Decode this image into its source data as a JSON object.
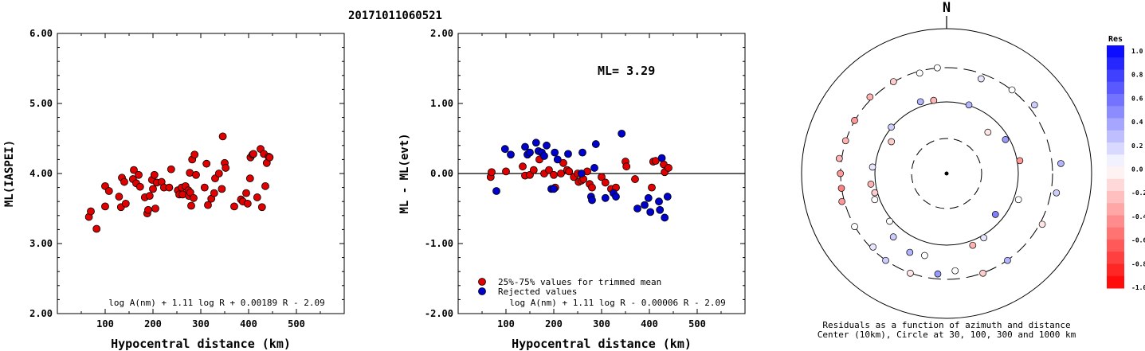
{
  "title": "20171011060521",
  "chart_data": [
    {
      "type": "scatter",
      "xlabel": "Hypocentral distance (km)",
      "ylabel": "ML(IASPEI)",
      "xlim": [
        0,
        600
      ],
      "ylim": [
        2.0,
        6.0
      ],
      "x_ticks": [
        "100",
        "200",
        "300",
        "400",
        "500"
      ],
      "y_ticks": [
        "2.00",
        "3.00",
        "4.00",
        "5.00",
        "6.00"
      ],
      "formula": "log A(nm) + 1.11 log R + 0.00189 R - 2.09",
      "marker_color": "#e00000",
      "points": [
        [
          66,
          3.38
        ],
        [
          70,
          3.46
        ],
        [
          82,
          3.21
        ],
        [
          100,
          3.82
        ],
        [
          100,
          3.53
        ],
        [
          108,
          3.75
        ],
        [
          129,
          3.67
        ],
        [
          133,
          3.52
        ],
        [
          135,
          3.94
        ],
        [
          140,
          3.88
        ],
        [
          143,
          3.57
        ],
        [
          158,
          3.92
        ],
        [
          160,
          4.05
        ],
        [
          165,
          3.86
        ],
        [
          170,
          3.98
        ],
        [
          173,
          3.81
        ],
        [
          183,
          3.66
        ],
        [
          188,
          3.43
        ],
        [
          190,
          3.48
        ],
        [
          193,
          3.68
        ],
        [
          198,
          3.91
        ],
        [
          200,
          3.78
        ],
        [
          203,
          3.98
        ],
        [
          205,
          3.5
        ],
        [
          208,
          3.87
        ],
        [
          218,
          3.88
        ],
        [
          223,
          3.8
        ],
        [
          234,
          3.8
        ],
        [
          238,
          4.06
        ],
        [
          252,
          3.76
        ],
        [
          255,
          3.7
        ],
        [
          260,
          3.8
        ],
        [
          262,
          3.7
        ],
        [
          268,
          3.82
        ],
        [
          274,
          3.76
        ],
        [
          275,
          3.68
        ],
        [
          277,
          4.01
        ],
        [
          278,
          3.73
        ],
        [
          280,
          3.54
        ],
        [
          282,
          4.2
        ],
        [
          285,
          3.65
        ],
        [
          287,
          4.27
        ],
        [
          290,
          3.98
        ],
        [
          308,
          3.8
        ],
        [
          312,
          4.14
        ],
        [
          315,
          3.55
        ],
        [
          322,
          3.64
        ],
        [
          328,
          3.72
        ],
        [
          330,
          3.93
        ],
        [
          338,
          4.0
        ],
        [
          344,
          3.78
        ],
        [
          346,
          4.53
        ],
        [
          350,
          4.15
        ],
        [
          352,
          4.08
        ],
        [
          370,
          3.53
        ],
        [
          384,
          3.63
        ],
        [
          388,
          3.6
        ],
        [
          395,
          3.72
        ],
        [
          398,
          3.57
        ],
        [
          403,
          3.93
        ],
        [
          404,
          4.23
        ],
        [
          408,
          4.27
        ],
        [
          410,
          4.28
        ],
        [
          418,
          3.66
        ],
        [
          425,
          4.35
        ],
        [
          428,
          3.52
        ],
        [
          432,
          4.28
        ],
        [
          435,
          3.82
        ],
        [
          438,
          4.15
        ],
        [
          442,
          4.24
        ],
        [
          444,
          4.23
        ]
      ]
    },
    {
      "type": "scatter",
      "xlabel": "Hypocentral distance (km)",
      "ylabel": "ML - ML(evt)",
      "xlim": [
        0,
        600
      ],
      "ylim": [
        -2.0,
        2.0
      ],
      "x_ticks": [
        "100",
        "200",
        "300",
        "400",
        "500"
      ],
      "y_ticks": [
        "-2.00",
        "-1.00",
        "0.00",
        "1.00",
        "2.00"
      ],
      "annotation": "ML= 3.29",
      "formula": "log A(nm) + 1.11 log R - 0.00006 R - 2.09",
      "reference_line": 0.0,
      "series": [
        {
          "name": "25%-75% values for trimmed mean",
          "color": "#e00000",
          "points": [
            [
              68,
              -0.05
            ],
            [
              70,
              0.02
            ],
            [
              100,
              0.03
            ],
            [
              135,
              0.1
            ],
            [
              140,
              -0.03
            ],
            [
              150,
              -0.02
            ],
            [
              158,
              0.05
            ],
            [
              170,
              0.2
            ],
            [
              180,
              0.0
            ],
            [
              190,
              0.05
            ],
            [
              200,
              -0.02
            ],
            [
              203,
              -0.2
            ],
            [
              215,
              0.0
            ],
            [
              220,
              0.15
            ],
            [
              228,
              0.05
            ],
            [
              232,
              0.03
            ],
            [
              242,
              -0.05
            ],
            [
              250,
              0.0
            ],
            [
              252,
              -0.12
            ],
            [
              258,
              -0.1
            ],
            [
              262,
              -0.08
            ],
            [
              270,
              0.03
            ],
            [
              275,
              -0.15
            ],
            [
              280,
              -0.2
            ],
            [
              300,
              -0.05
            ],
            [
              308,
              -0.13
            ],
            [
              320,
              -0.22
            ],
            [
              330,
              -0.2
            ],
            [
              350,
              0.17
            ],
            [
              352,
              0.1
            ],
            [
              370,
              -0.08
            ],
            [
              405,
              -0.2
            ],
            [
              408,
              0.17
            ],
            [
              413,
              0.18
            ],
            [
              430,
              0.13
            ],
            [
              432,
              0.02
            ],
            [
              440,
              0.08
            ]
          ]
        },
        {
          "name": "Rejected values",
          "color": "#0000cc",
          "points": [
            [
              80,
              -0.25
            ],
            [
              98,
              0.35
            ],
            [
              110,
              0.27
            ],
            [
              140,
              0.38
            ],
            [
              145,
              0.27
            ],
            [
              150,
              0.3
            ],
            [
              163,
              0.44
            ],
            [
              168,
              0.32
            ],
            [
              175,
              0.3
            ],
            [
              180,
              0.25
            ],
            [
              185,
              0.4
            ],
            [
              195,
              -0.22
            ],
            [
              200,
              -0.22
            ],
            [
              202,
              0.3
            ],
            [
              208,
              0.2
            ],
            [
              230,
              0.28
            ],
            [
              258,
              0.0
            ],
            [
              260,
              0.3
            ],
            [
              278,
              -0.33
            ],
            [
              280,
              -0.38
            ],
            [
              285,
              0.08
            ],
            [
              288,
              0.42
            ],
            [
              308,
              -0.35
            ],
            [
              325,
              -0.28
            ],
            [
              330,
              -0.33
            ],
            [
              342,
              0.57
            ],
            [
              375,
              -0.5
            ],
            [
              390,
              -0.45
            ],
            [
              398,
              -0.35
            ],
            [
              402,
              -0.55
            ],
            [
              420,
              -0.4
            ],
            [
              422,
              -0.52
            ],
            [
              426,
              0.22
            ],
            [
              432,
              -0.63
            ],
            [
              438,
              -0.33
            ]
          ]
        }
      ]
    }
  ],
  "polar": {
    "north_label": "N",
    "caption_line1": "Residuals as a function of azimuth and distance",
    "caption_line2": "Center (10km), Circle at 30, 100, 300 and 1000 km",
    "points": [
      [
        20,
        95,
        0.1
      ],
      [
        38,
        100,
        0.0
      ],
      [
        52,
        105,
        0.2
      ],
      [
        85,
        108,
        0.3
      ],
      [
        100,
        105,
        0.2
      ],
      [
        118,
        102,
        -0.1
      ],
      [
        145,
        100,
        0.3
      ],
      [
        160,
        100,
        -0.2
      ],
      [
        175,
        92,
        0.0
      ],
      [
        185,
        95,
        0.4
      ],
      [
        200,
        100,
        -0.1
      ],
      [
        215,
        100,
        0.2
      ],
      [
        225,
        98,
        0.1
      ],
      [
        240,
        100,
        0.0
      ],
      [
        255,
        102,
        -0.4
      ],
      [
        262,
        100,
        -0.5
      ],
      [
        270,
        100,
        -0.4
      ],
      [
        278,
        102,
        -0.3
      ],
      [
        288,
        100,
        -0.3
      ],
      [
        300,
        100,
        -0.4
      ],
      [
        315,
        102,
        -0.3
      ],
      [
        330,
        100,
        -0.2
      ],
      [
        345,
        98,
        0.0
      ],
      [
        355,
        100,
        0.0
      ],
      [
        18,
        68,
        0.3
      ],
      [
        45,
        55,
        -0.1
      ],
      [
        60,
        64,
        0.4
      ],
      [
        110,
        72,
        0.0
      ],
      [
        130,
        60,
        0.5
      ],
      [
        150,
        70,
        0.1
      ],
      [
        160,
        72,
        -0.3
      ],
      [
        195,
        80,
        0.0
      ],
      [
        205,
        82,
        0.3
      ],
      [
        220,
        78,
        0.2
      ],
      [
        230,
        70,
        0.0
      ],
      [
        250,
        72,
        0.0
      ],
      [
        255,
        70,
        -0.2
      ],
      [
        262,
        72,
        -0.3
      ],
      [
        275,
        70,
        0.1
      ],
      [
        300,
        60,
        -0.2
      ],
      [
        310,
        68,
        0.2
      ],
      [
        340,
        72,
        0.3
      ],
      [
        350,
        70,
        -0.3
      ],
      [
        80,
        70,
        -0.4
      ]
    ],
    "colorbar": {
      "title": "Res",
      "labels": [
        "1.0",
        "0.8",
        "0.6",
        "0.4",
        "0.2",
        "0.0",
        "-0.2",
        "-0.4",
        "-0.6",
        "-0.8",
        "-1.0"
      ]
    }
  }
}
